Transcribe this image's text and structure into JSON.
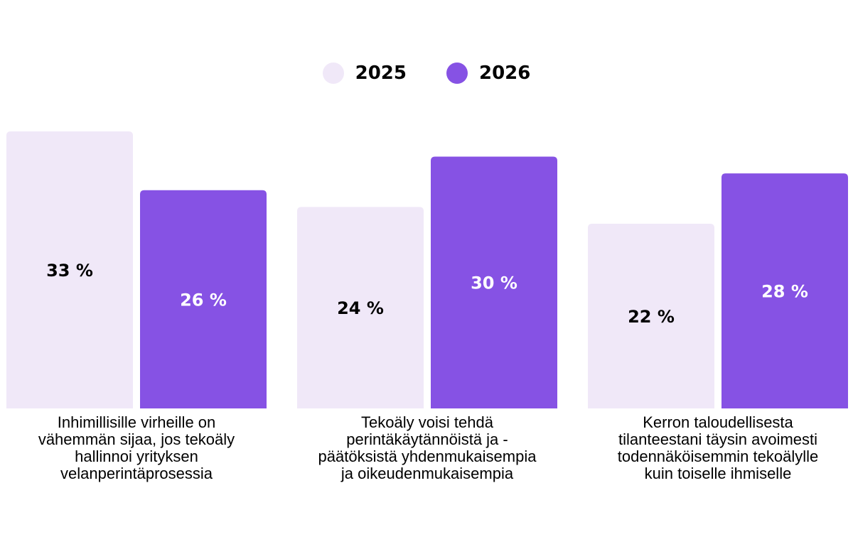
{
  "chart_data": {
    "type": "bar",
    "categories": [
      "Inhimillisille virheille on vähemmän sijaa, jos tekoäly hallinnoi yrityksen velanperintäprosessia",
      "Tekoäly voisi tehdä perintäkäytännöistä ja -päätöksistä yhdenmukaisempia ja oikeudenmukaisempia",
      "Kerron taloudellisesta tilanteestani täysin avoimesti todennäköisemmin tekoälylle kuin toiselle ihmiselle"
    ],
    "category_lines": [
      [
        "Inhimillisille virheille on",
        "vähemmän sijaa, jos tekoäly",
        "hallinnoi yrityksen",
        "velanperintäprosessia"
      ],
      [
        "Tekoäly voisi tehdä",
        "perintäkäytännöistä ja -",
        "päätöksistä yhdenmukaisempia",
        "ja oikeudenmukaisempia"
      ],
      [
        "Kerron taloudellisesta",
        "tilanteestani täysin avoimesti",
        "todennäköisemmin tekoälylle",
        "kuin toiselle ihmiselle"
      ]
    ],
    "series": [
      {
        "name": "2025",
        "values": [
          33,
          24,
          22
        ],
        "labels": [
          "33 %",
          "24 %",
          "22 %"
        ],
        "color": "#f0e8f8",
        "label_color": "#000000"
      },
      {
        "name": "2026",
        "values": [
          26,
          30,
          28
        ],
        "labels": [
          "26 %",
          "30 %",
          "28 %"
        ],
        "color": "#8652e4",
        "label_color": "#ffffff"
      }
    ],
    "ylim": [
      0,
      33
    ],
    "grid": false,
    "legend_position": "top-center"
  }
}
